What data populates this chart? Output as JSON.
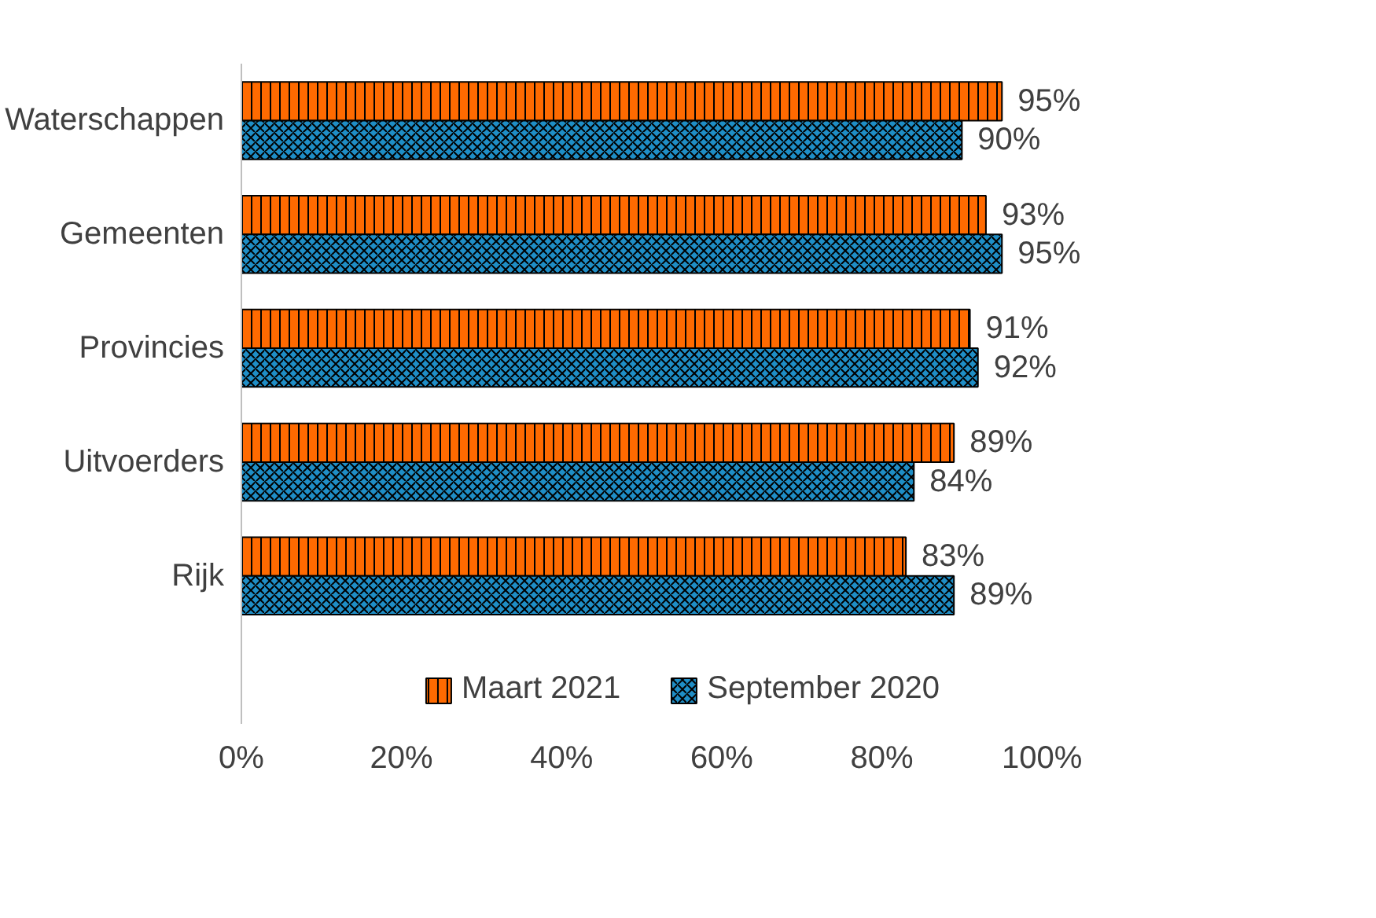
{
  "chart_data": {
    "type": "bar",
    "orientation": "horizontal",
    "categories": [
      "Waterschappen",
      "Gemeenten",
      "Provincies",
      "Uitvoerders",
      "Rijk"
    ],
    "series": [
      {
        "name": "Maart 2021",
        "color": "#ff6a00",
        "values": [
          95,
          93,
          91,
          89,
          83
        ],
        "value_labels": [
          "95%",
          "93%",
          "91%",
          "89%",
          "83%"
        ]
      },
      {
        "name": "September 2020",
        "color": "#1f8ec6",
        "values": [
          90,
          95,
          92,
          84,
          89
        ],
        "value_labels": [
          "90%",
          "95%",
          "92%",
          "84%",
          "89%"
        ]
      }
    ],
    "xlim": [
      0,
      100
    ],
    "xticks": [
      {
        "value": 0,
        "label": "0%"
      },
      {
        "value": 20,
        "label": "20%"
      },
      {
        "value": 40,
        "label": "40%"
      },
      {
        "value": 60,
        "label": "60%"
      },
      {
        "value": 80,
        "label": "80%"
      },
      {
        "value": 100,
        "label": "100%"
      }
    ],
    "grid": false,
    "legend": "bottom"
  }
}
